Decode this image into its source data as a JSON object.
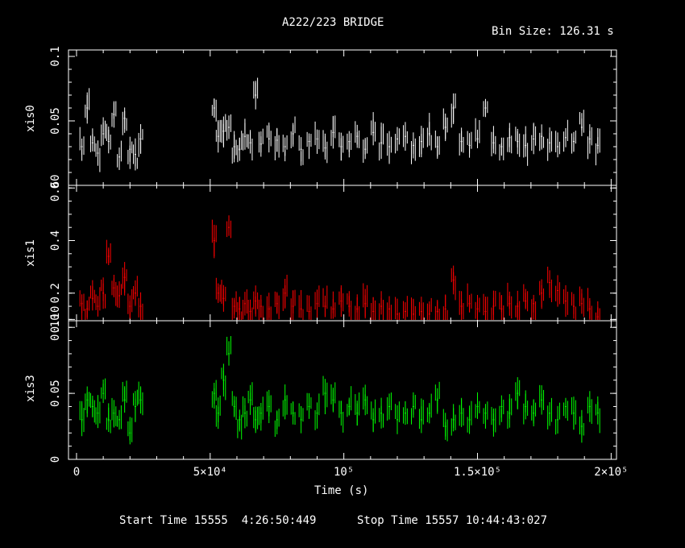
{
  "title": "A222/223 BRIDGE",
  "bin_size_label": "Bin Size: 126.31 s",
  "xlabel": "Time (s)",
  "start_time": "Start Time 15555  4:26:50:449",
  "stop_time": "Stop Time 15557 10:44:43:027",
  "x_ticks": [
    {
      "value": 0,
      "label": "0"
    },
    {
      "value": 50000,
      "label": "5×10⁴"
    },
    {
      "value": 100000,
      "label": "10⁵"
    },
    {
      "value": 150000,
      "label": "1.5×10⁵"
    },
    {
      "value": 200000,
      "label": "2×10⁵"
    }
  ],
  "chart_data": [
    {
      "type": "scatter",
      "name": "xis0",
      "ylabel": "xis0",
      "color": "#ffffff",
      "xlim": [
        -3000,
        202000
      ],
      "ylim": [
        0.0,
        0.105
      ],
      "y_ticks": [
        {
          "value": 0.0,
          "label": "0"
        },
        {
          "value": 0.05,
          "label": "0.05"
        },
        {
          "value": 0.1,
          "label": "0.1"
        }
      ],
      "points": [
        [
          2000,
          0.03
        ],
        [
          4000,
          0.06
        ],
        [
          6000,
          0.033
        ],
        [
          8000,
          0.025
        ],
        [
          10000,
          0.04
        ],
        [
          12000,
          0.034
        ],
        [
          14000,
          0.055
        ],
        [
          16000,
          0.022
        ],
        [
          18000,
          0.052
        ],
        [
          20000,
          0.028
        ],
        [
          22000,
          0.024
        ],
        [
          24000,
          0.036
        ],
        [
          51500,
          0.06
        ],
        [
          53000,
          0.038
        ],
        [
          55000,
          0.042
        ],
        [
          57000,
          0.045
        ],
        [
          59000,
          0.03
        ],
        [
          61000,
          0.028
        ],
        [
          63000,
          0.038
        ],
        [
          65000,
          0.033
        ],
        [
          67000,
          0.07
        ],
        [
          69000,
          0.032
        ],
        [
          72000,
          0.036
        ],
        [
          75000,
          0.035
        ],
        [
          78000,
          0.03
        ],
        [
          81000,
          0.04
        ],
        [
          84000,
          0.028
        ],
        [
          87000,
          0.034
        ],
        [
          90000,
          0.036
        ],
        [
          93000,
          0.029
        ],
        [
          96000,
          0.041
        ],
        [
          99000,
          0.03
        ],
        [
          102000,
          0.034
        ],
        [
          105000,
          0.038
        ],
        [
          108000,
          0.028
        ],
        [
          111000,
          0.041
        ],
        [
          114000,
          0.033
        ],
        [
          117000,
          0.03
        ],
        [
          120000,
          0.036
        ],
        [
          123000,
          0.038
        ],
        [
          126000,
          0.031
        ],
        [
          129000,
          0.034
        ],
        [
          132000,
          0.04
        ],
        [
          135000,
          0.03
        ],
        [
          138000,
          0.045
        ],
        [
          141000,
          0.06
        ],
        [
          144000,
          0.034
        ],
        [
          147000,
          0.031
        ],
        [
          150000,
          0.036
        ],
        [
          153000,
          0.06
        ],
        [
          156000,
          0.033
        ],
        [
          159000,
          0.03
        ],
        [
          162000,
          0.037
        ],
        [
          165000,
          0.034
        ],
        [
          168000,
          0.031
        ],
        [
          171000,
          0.036
        ],
        [
          174000,
          0.038
        ],
        [
          177000,
          0.033
        ],
        [
          180000,
          0.03
        ],
        [
          183000,
          0.037
        ],
        [
          186000,
          0.034
        ],
        [
          189000,
          0.045
        ],
        [
          192000,
          0.036
        ],
        [
          195000,
          0.031
        ]
      ]
    },
    {
      "type": "scatter",
      "name": "xis1",
      "ylabel": "xis1",
      "color": "#ff0000",
      "xlim": [
        -3000,
        202000
      ],
      "ylim": [
        0.095,
        0.61
      ],
      "y_ticks": [
        {
          "value": 0.1,
          "label": "0.10"
        },
        {
          "value": 0.2,
          "label": "0.2"
        },
        {
          "value": 0.4,
          "label": "0.4"
        },
        {
          "value": 0.6,
          "label": "0.60"
        }
      ],
      "points": [
        [
          2000,
          0.16
        ],
        [
          4000,
          0.14
        ],
        [
          6000,
          0.18
        ],
        [
          8000,
          0.15
        ],
        [
          10000,
          0.2
        ],
        [
          12000,
          0.34
        ],
        [
          14000,
          0.22
        ],
        [
          16000,
          0.19
        ],
        [
          18000,
          0.26
        ],
        [
          20000,
          0.15
        ],
        [
          22000,
          0.2
        ],
        [
          24000,
          0.15
        ],
        [
          51500,
          0.4
        ],
        [
          53000,
          0.2
        ],
        [
          55000,
          0.18
        ],
        [
          57000,
          0.45
        ],
        [
          59000,
          0.15
        ],
        [
          61000,
          0.14
        ],
        [
          63000,
          0.16
        ],
        [
          65000,
          0.13
        ],
        [
          67000,
          0.17
        ],
        [
          69000,
          0.15
        ],
        [
          72000,
          0.14
        ],
        [
          75000,
          0.16
        ],
        [
          78000,
          0.2
        ],
        [
          81000,
          0.15
        ],
        [
          84000,
          0.14
        ],
        [
          87000,
          0.13
        ],
        [
          90000,
          0.16
        ],
        [
          93000,
          0.15
        ],
        [
          96000,
          0.14
        ],
        [
          99000,
          0.17
        ],
        [
          102000,
          0.15
        ],
        [
          105000,
          0.14
        ],
        [
          108000,
          0.16
        ],
        [
          111000,
          0.13
        ],
        [
          114000,
          0.15
        ],
        [
          117000,
          0.14
        ],
        [
          120000,
          0.12
        ],
        [
          123000,
          0.13
        ],
        [
          126000,
          0.12
        ],
        [
          129000,
          0.13
        ],
        [
          132000,
          0.12
        ],
        [
          135000,
          0.13
        ],
        [
          138000,
          0.14
        ],
        [
          141000,
          0.25
        ],
        [
          144000,
          0.15
        ],
        [
          147000,
          0.16
        ],
        [
          150000,
          0.14
        ],
        [
          153000,
          0.13
        ],
        [
          156000,
          0.15
        ],
        [
          159000,
          0.14
        ],
        [
          162000,
          0.16
        ],
        [
          165000,
          0.15
        ],
        [
          168000,
          0.17
        ],
        [
          171000,
          0.16
        ],
        [
          174000,
          0.2
        ],
        [
          177000,
          0.24
        ],
        [
          180000,
          0.21
        ],
        [
          183000,
          0.17
        ],
        [
          186000,
          0.15
        ],
        [
          189000,
          0.16
        ],
        [
          192000,
          0.14
        ],
        [
          195000,
          0.11
        ]
      ]
    },
    {
      "type": "scatter",
      "name": "xis3",
      "ylabel": "xis3",
      "color": "#00ff00",
      "xlim": [
        -3000,
        202000
      ],
      "ylim": [
        0.0,
        0.105
      ],
      "y_ticks": [
        {
          "value": 0.0,
          "label": "0"
        },
        {
          "value": 0.05,
          "label": "0.05"
        },
        {
          "value": 0.1,
          "label": "0.10"
        }
      ],
      "points": [
        [
          2000,
          0.03
        ],
        [
          4000,
          0.045
        ],
        [
          6000,
          0.04
        ],
        [
          8000,
          0.035
        ],
        [
          10000,
          0.05
        ],
        [
          12000,
          0.03
        ],
        [
          14000,
          0.035
        ],
        [
          16000,
          0.03
        ],
        [
          18000,
          0.045
        ],
        [
          20000,
          0.02
        ],
        [
          22000,
          0.04
        ],
        [
          24000,
          0.045
        ],
        [
          51500,
          0.05
        ],
        [
          53000,
          0.035
        ],
        [
          55000,
          0.06
        ],
        [
          57000,
          0.08
        ],
        [
          59000,
          0.04
        ],
        [
          61000,
          0.03
        ],
        [
          63000,
          0.035
        ],
        [
          65000,
          0.045
        ],
        [
          67000,
          0.03
        ],
        [
          69000,
          0.035
        ],
        [
          72000,
          0.04
        ],
        [
          75000,
          0.03
        ],
        [
          78000,
          0.045
        ],
        [
          81000,
          0.035
        ],
        [
          84000,
          0.03
        ],
        [
          87000,
          0.04
        ],
        [
          90000,
          0.035
        ],
        [
          93000,
          0.05
        ],
        [
          96000,
          0.045
        ],
        [
          99000,
          0.035
        ],
        [
          102000,
          0.04
        ],
        [
          105000,
          0.035
        ],
        [
          108000,
          0.045
        ],
        [
          111000,
          0.03
        ],
        [
          114000,
          0.035
        ],
        [
          117000,
          0.04
        ],
        [
          120000,
          0.03
        ],
        [
          123000,
          0.035
        ],
        [
          126000,
          0.04
        ],
        [
          129000,
          0.03
        ],
        [
          132000,
          0.035
        ],
        [
          135000,
          0.045
        ],
        [
          138000,
          0.025
        ],
        [
          141000,
          0.03
        ],
        [
          144000,
          0.035
        ],
        [
          147000,
          0.03
        ],
        [
          150000,
          0.04
        ],
        [
          153000,
          0.035
        ],
        [
          156000,
          0.03
        ],
        [
          159000,
          0.04
        ],
        [
          162000,
          0.035
        ],
        [
          165000,
          0.05
        ],
        [
          168000,
          0.04
        ],
        [
          171000,
          0.035
        ],
        [
          174000,
          0.045
        ],
        [
          177000,
          0.035
        ],
        [
          180000,
          0.03
        ],
        [
          183000,
          0.04
        ],
        [
          186000,
          0.035
        ],
        [
          189000,
          0.025
        ],
        [
          192000,
          0.04
        ],
        [
          195000,
          0.035
        ]
      ]
    }
  ]
}
